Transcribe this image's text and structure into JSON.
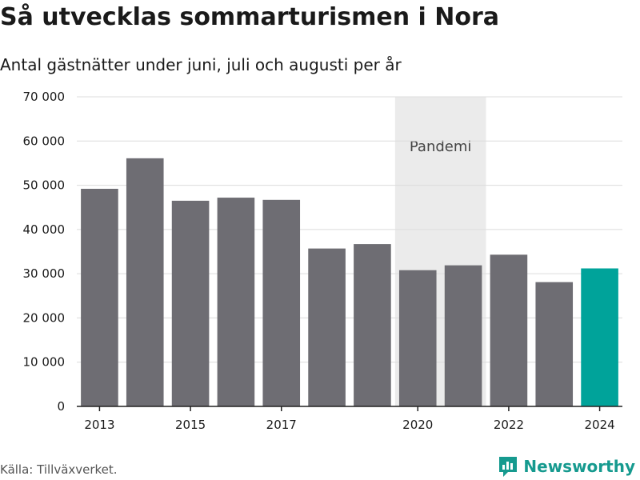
{
  "title": "Så utvecklas sommarturismen i Nora",
  "subtitle": "Antal gästnätter under juni, juli och augusti per år",
  "source": "Källa: Tillväxverket.",
  "brand": "Newsworthy",
  "colors": {
    "bar": "#6e6d73",
    "highlight": "#00a39a",
    "band": "#ebebeb",
    "grid": "#dcdcdc",
    "axis": "#222222"
  },
  "chart_data": {
    "type": "bar",
    "categories": [
      "2013",
      "2014",
      "2015",
      "2016",
      "2017",
      "2018",
      "2019",
      "2020",
      "2021",
      "2022",
      "2023",
      "2024"
    ],
    "values": [
      49200,
      56100,
      46500,
      47200,
      46700,
      35700,
      36700,
      30800,
      31900,
      34300,
      28100,
      31200
    ],
    "highlight_index": 11,
    "x_tick_labels": [
      "2013",
      "2015",
      "2017",
      "2020",
      "2022",
      "2024"
    ],
    "y_ticks": [
      0,
      10000,
      20000,
      30000,
      40000,
      50000,
      60000,
      70000
    ],
    "y_tick_labels": [
      "0",
      "10 000",
      "20 000",
      "30 000",
      "40 000",
      "50 000",
      "60 000",
      "70 000"
    ],
    "ylim": [
      0,
      70000
    ],
    "grid": true,
    "band": {
      "label": "Pandemi",
      "from": "2020",
      "to": "2021"
    }
  }
}
